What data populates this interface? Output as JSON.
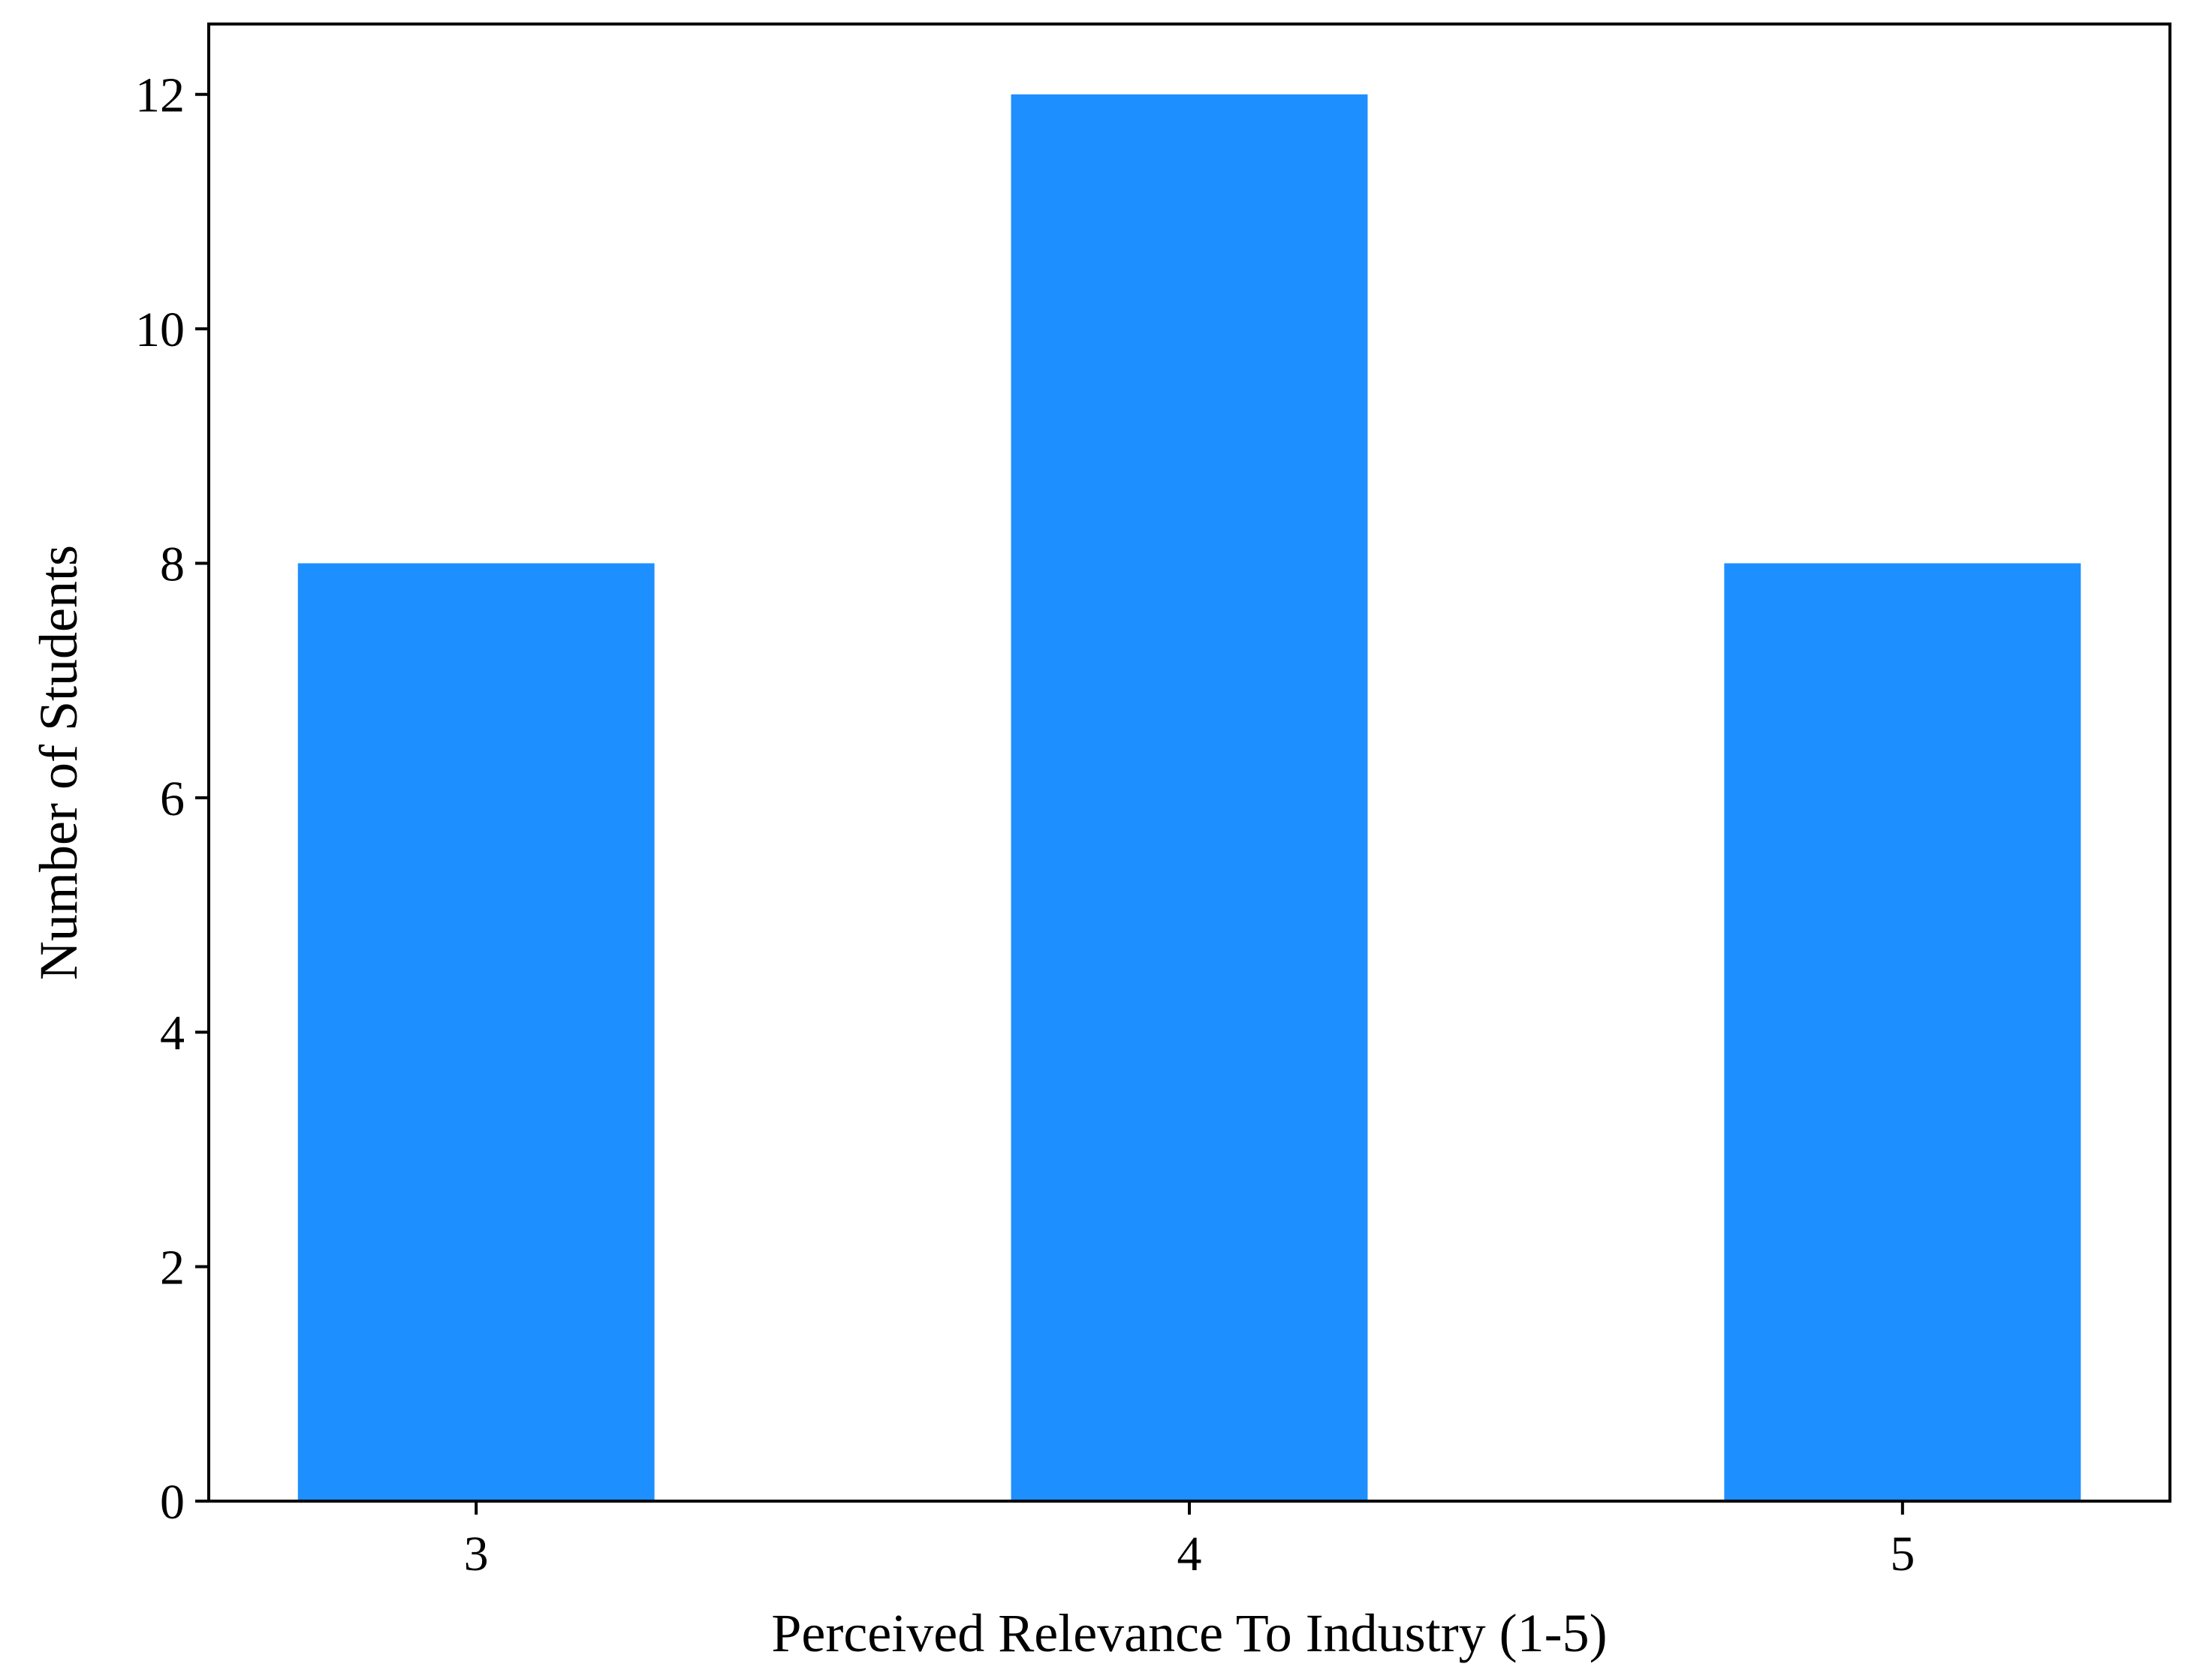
{
  "chart_data": {
    "type": "bar",
    "categories": [
      "3",
      "4",
      "5"
    ],
    "values": [
      8,
      12,
      8
    ],
    "title": "",
    "xlabel": "Perceived Relevance To Industry (1-5)",
    "ylabel": "Number of Students",
    "ylim": [
      0,
      12.6
    ],
    "yticks": [
      0,
      2,
      4,
      6,
      8,
      10,
      12
    ],
    "grid": false,
    "legend": "none",
    "bar_color": "#1E8FFF"
  }
}
